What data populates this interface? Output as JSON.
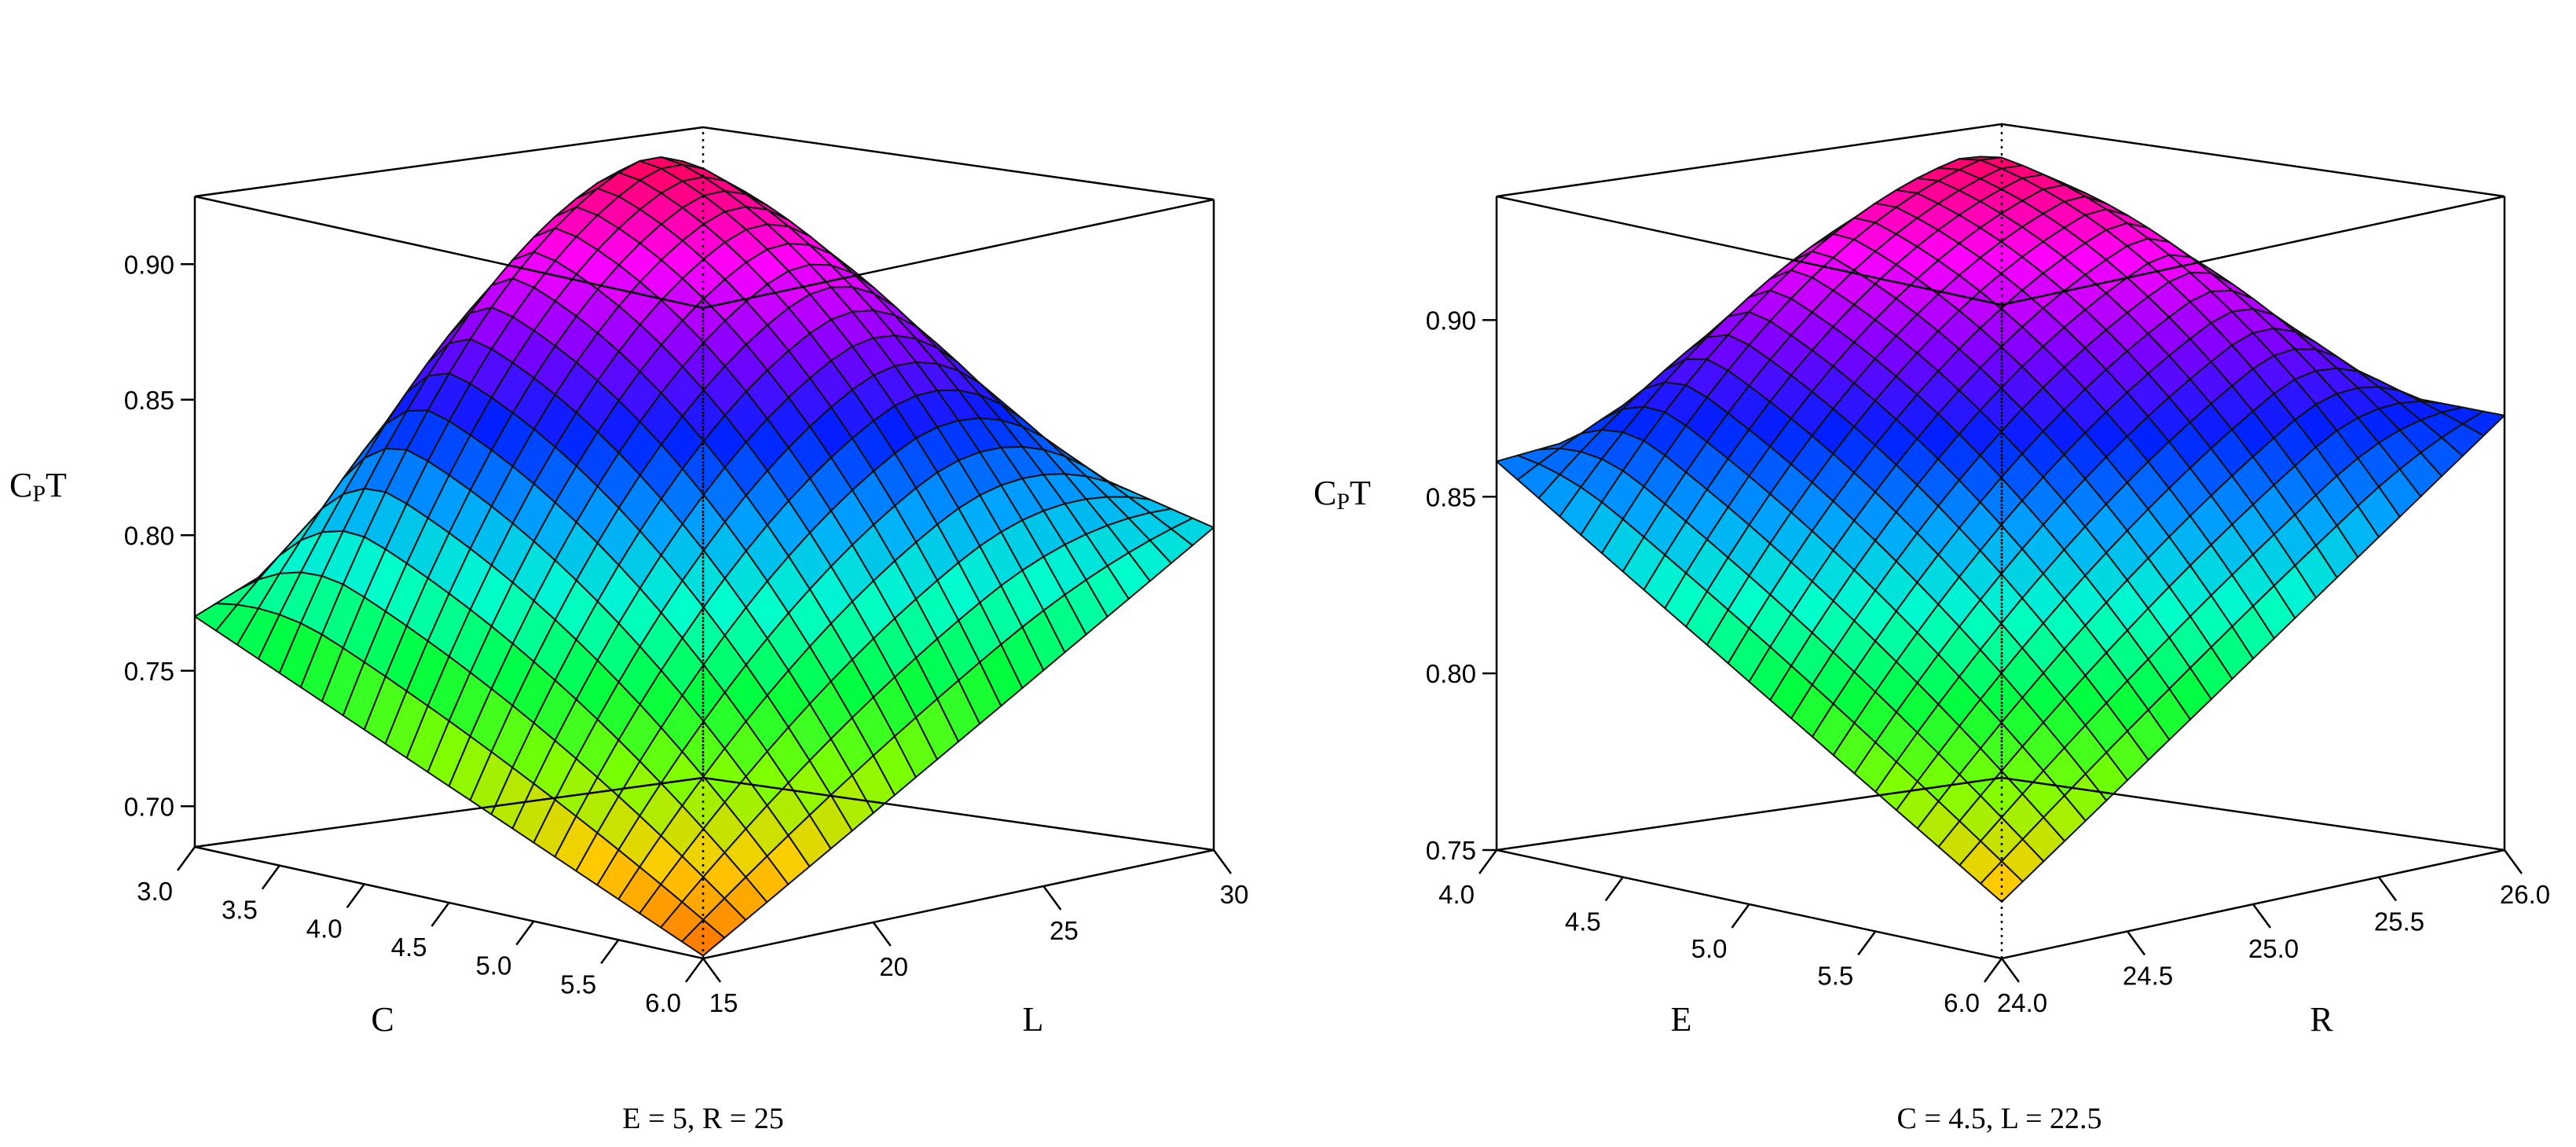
{
  "chart_data": [
    {
      "type": "surface",
      "title": "",
      "zlabel_main": "C",
      "zlabel_sub": "P",
      "zlabel_tail": "T",
      "zlim": [
        0.685,
        0.925
      ],
      "zticks": [
        {
          "value": 0.7,
          "label": "0.70"
        },
        {
          "value": 0.75,
          "label": "0.75"
        },
        {
          "value": 0.8,
          "label": "0.80"
        },
        {
          "value": 0.85,
          "label": "0.85"
        },
        {
          "value": 0.9,
          "label": "0.90"
        }
      ],
      "xlabel": "C",
      "xlim": [
        3.0,
        6.0
      ],
      "xticks": [
        {
          "value": 3.0,
          "label": "3.0"
        },
        {
          "value": 3.5,
          "label": "3.5"
        },
        {
          "value": 4.0,
          "label": "4.0"
        },
        {
          "value": 4.5,
          "label": "4.5"
        },
        {
          "value": 5.0,
          "label": "5.0"
        },
        {
          "value": 5.5,
          "label": "5.5"
        },
        {
          "value": 6.0,
          "label": "6.0"
        }
      ],
      "ylabel": "L",
      "ylim": [
        15,
        30
      ],
      "yticks": [
        {
          "value": 15,
          "label": "15"
        },
        {
          "value": 20,
          "label": "20"
        },
        {
          "value": 25,
          "label": "25"
        },
        {
          "value": 30,
          "label": "30"
        }
      ],
      "caption": "E = 5, R = 25",
      "corner_values": {
        "x_min_y_max": 0.86,
        "x_max_y_max": 0.804,
        "x_max_y_min": 0.686,
        "x_min_y_min": 0.77
      },
      "peak": {
        "x": 3.7,
        "y": 24.5,
        "z": 0.925
      },
      "colors": [
        "#ff6a00",
        "#ffcc00",
        "#7fff00",
        "#00ff40",
        "#00ffcc",
        "#00a0ff",
        "#0020ff",
        "#8000ff",
        "#ff00ff",
        "#ff0066"
      ]
    },
    {
      "type": "surface",
      "title": "",
      "zlabel_main": "C",
      "zlabel_sub": "P",
      "zlabel_tail": "T",
      "zlim": [
        0.75,
        0.935
      ],
      "zticks": [
        {
          "value": 0.75,
          "label": "0.75"
        },
        {
          "value": 0.8,
          "label": "0.80"
        },
        {
          "value": 0.85,
          "label": "0.85"
        },
        {
          "value": 0.9,
          "label": "0.90"
        }
      ],
      "xlabel": "E",
      "xlim": [
        4.0,
        6.0
      ],
      "xticks": [
        {
          "value": 4.0,
          "label": "4.0"
        },
        {
          "value": 4.5,
          "label": "4.5"
        },
        {
          "value": 5.0,
          "label": "5.0"
        },
        {
          "value": 5.5,
          "label": "5.5"
        },
        {
          "value": 6.0,
          "label": "6.0"
        }
      ],
      "ylabel": "R",
      "ylim": [
        24.0,
        26.0
      ],
      "yticks": [
        {
          "value": 24.0,
          "label": "24.0"
        },
        {
          "value": 24.5,
          "label": "24.5"
        },
        {
          "value": 25.0,
          "label": "25.0"
        },
        {
          "value": 25.5,
          "label": "25.5"
        },
        {
          "value": 26.0,
          "label": "26.0"
        }
      ],
      "caption": "C = 4.5, L = 22.5",
      "corner_values": {
        "x_min_y_max": 0.88,
        "x_max_y_max": 0.873,
        "x_max_y_min": 0.766,
        "x_min_y_min": 0.86
      },
      "peak": {
        "x": 4.4,
        "y": 25.5,
        "z": 0.935
      },
      "colors": [
        "#ff6a00",
        "#ffcc00",
        "#7fff00",
        "#00ff40",
        "#00ffcc",
        "#00a0ff",
        "#0020ff",
        "#8000ff",
        "#ff00ff",
        "#ff0066"
      ]
    }
  ]
}
